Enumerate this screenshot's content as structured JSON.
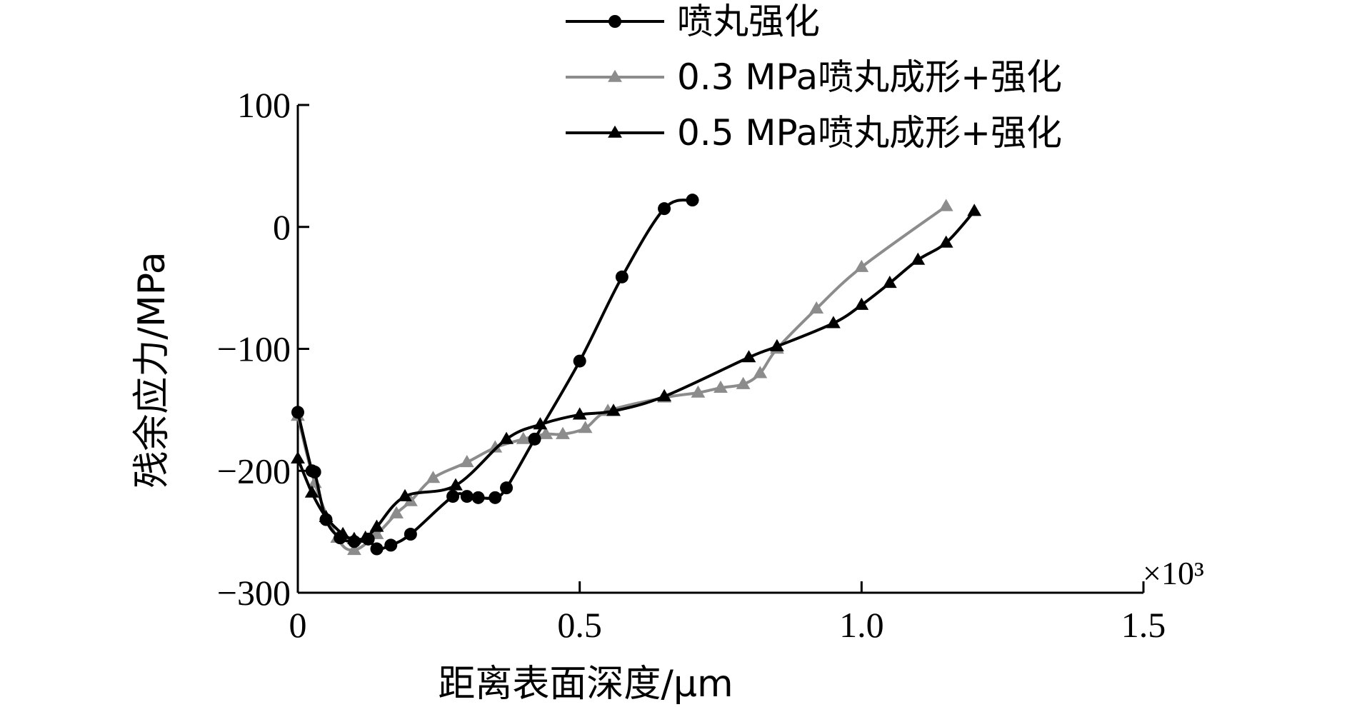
{
  "chart_data": {
    "type": "line",
    "xlabel": "距离表面深度/μm",
    "ylabel": "残余应力/MPa",
    "x_scale_label": "×10³",
    "xlim": [
      0,
      1.5
    ],
    "ylim": [
      -300,
      100
    ],
    "x_ticks": [
      "0",
      "0.5",
      "1.0",
      "1.5"
    ],
    "y_ticks": [
      "100",
      "0",
      "−100",
      "−200",
      "−300"
    ],
    "grid": false,
    "legend_position": "top-right",
    "series": [
      {
        "name": "喷丸强化",
        "color": "#000000",
        "marker": "circle",
        "x": [
          0.0,
          0.025,
          0.03,
          0.05,
          0.075,
          0.1,
          0.125,
          0.14,
          0.165,
          0.2,
          0.275,
          0.3,
          0.32,
          0.35,
          0.37,
          0.42,
          0.5,
          0.575,
          0.65,
          0.7
        ],
        "y": [
          -152,
          -200,
          -201,
          -240,
          -255,
          -258,
          -256,
          -264,
          -261,
          -252,
          -221,
          -221,
          -222,
          -222,
          -214,
          -174,
          -110,
          -41,
          15,
          22
        ]
      },
      {
        "name": "0.3 MPa喷丸成形+强化",
        "color": "#8c8c8c",
        "marker": "triangle",
        "x": [
          0.0,
          0.03,
          0.07,
          0.1,
          0.14,
          0.175,
          0.2,
          0.24,
          0.3,
          0.35,
          0.4,
          0.44,
          0.47,
          0.51,
          0.55,
          0.65,
          0.71,
          0.75,
          0.79,
          0.82,
          0.85,
          0.92,
          1.0,
          1.15
        ],
        "y": [
          -155,
          -210,
          -255,
          -265,
          -252,
          -235,
          -225,
          -206,
          -193,
          -181,
          -174,
          -170,
          -170,
          -165,
          -151,
          -140,
          -136,
          -132,
          -129,
          -120,
          -100,
          -67,
          -33,
          17
        ]
      },
      {
        "name": "0.5 MPa喷丸成形+强化",
        "color": "#000000",
        "marker": "triangle",
        "x": [
          0.0,
          0.025,
          0.05,
          0.08,
          0.1,
          0.12,
          0.14,
          0.19,
          0.28,
          0.37,
          0.43,
          0.5,
          0.56,
          0.65,
          0.8,
          0.85,
          0.95,
          1.0,
          1.05,
          1.1,
          1.15,
          1.2
        ],
        "y": [
          -190,
          -218,
          -238,
          -252,
          -256,
          -255,
          -246,
          -221,
          -212,
          -174,
          -162,
          -154,
          -151,
          -139,
          -107,
          -98,
          -79,
          -64,
          -46,
          -27,
          -13,
          13
        ]
      }
    ]
  }
}
